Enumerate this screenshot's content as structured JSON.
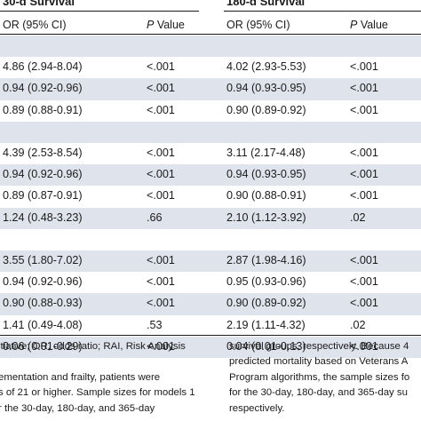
{
  "header": {
    "group1": "30-d Survival",
    "group2": "180-d Survival",
    "col_or": "OR (95% CI)",
    "col_p_italic": "P",
    "col_p_rest": " Value"
  },
  "rows": [
    {
      "or30": "",
      "p30": "",
      "or180": "",
      "p180": ""
    },
    {
      "or30": "4.86 (2.94-8.04)",
      "p30": "<.001",
      "or180": "4.02 (2.93-5.53)",
      "p180": "<.001"
    },
    {
      "or30": "0.94 (0.92-0.96)",
      "p30": "<.001",
      "or180": "0.94 (0.93-0.95)",
      "p180": "<.001"
    },
    {
      "or30": "0.89 (0.88-0.91)",
      "p30": "<.001",
      "or180": "0.90 (0.89-0.92)",
      "p180": "<.001"
    },
    {
      "or30": "",
      "p30": "",
      "or180": "",
      "p180": ""
    },
    {
      "or30": "4.39 (2.53-8.54)",
      "p30": "<.001",
      "or180": "3.11 (2.17-4.48)",
      "p180": "<.001"
    },
    {
      "or30": "0.94 (0.92-0.96)",
      "p30": "<.001",
      "or180": "0.94 (0.93-0.95)",
      "p180": "<.001"
    },
    {
      "or30": "0.89 (0.87-0.91)",
      "p30": "<.001",
      "or180": "0.90 (0.88-0.91)",
      "p180": "<.001"
    },
    {
      "or30": "1.24 (0.48-3.23)",
      "p30": ".66",
      "or180": "2.10 (1.12-3.92)",
      "p180": ".02"
    },
    {
      "or30": "",
      "p30": "",
      "or180": "",
      "p180": ""
    },
    {
      "or30": "3.55 (1.80-7.02)",
      "p30": "<.001",
      "or180": "2.87 (1.98-4.16)",
      "p180": "<.001"
    },
    {
      "or30": "0.94 (0.92-0.96)",
      "p30": "<.001",
      "or180": "0.95 (0.93-0.96)",
      "p180": "<.001"
    },
    {
      "or30": "0.90 (0.88-0.93)",
      "p30": "<.001",
      "or180": "0.90 (0.89-0.92)",
      "p180": "<.001"
    },
    {
      "or30": "1.41 (0.49-4.08)",
      "p30": ".53",
      "or180": "2.19 (1.11-4.32)",
      "p180": ".02"
    },
    {
      "or30": "0.06 (0.01-0.29)",
      "p30": "<.001",
      "or180": "0.04 (0.01-0.13)",
      "p180": "<.001"
    }
  ],
  "footnote_left": [
    "itiative; OR, odds ratio; RAI, Risk Analysis",
    "",
    "ementation and frailty, patients were",
    "s of 21 or higher. Sample sizes for models 1",
    "r the 30-day, 180-day, and 365-day"
  ],
  "footnote_right": [
    "survival groups, respectively. Because 4",
    "predicted mortality based on Veterans A",
    "Program algorithms, the sample sizes fo",
    "for the 30-day, 180-day, and 365-day su",
    "respectively."
  ],
  "colors": {
    "band": "#dfe4ec",
    "text": "#1a1a1a"
  }
}
